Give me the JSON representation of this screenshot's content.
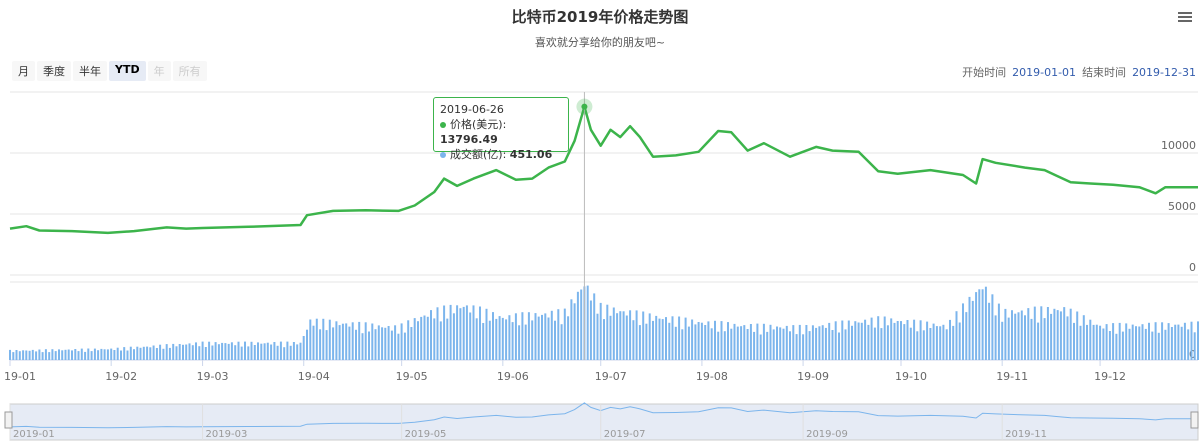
{
  "title": "比特币2019年价格走势图",
  "subtitle": "喜欢就分享给你的朋友吧~",
  "range_selector": {
    "buttons": [
      {
        "label": "月",
        "state": "normal"
      },
      {
        "label": "季度",
        "state": "normal"
      },
      {
        "label": "半年",
        "state": "normal"
      },
      {
        "label": "YTD",
        "state": "active"
      },
      {
        "label": "年",
        "state": "disabled"
      },
      {
        "label": "所有",
        "state": "disabled"
      }
    ],
    "from_label": "开始时间",
    "from_value": "2019-01-01",
    "to_label": "结束时间",
    "to_value": "2019-12-31"
  },
  "tooltip": {
    "date": "2019-06-26",
    "price_label": "价格(美元):",
    "price_value": "13796.49",
    "volume_label": "成交额(亿):",
    "volume_value": "451.06"
  },
  "colors": {
    "price": "#3cb44b",
    "volume": "#7cb5ec",
    "navigator": "#7cb5ec"
  },
  "chart_data": {
    "type": "line",
    "x_axis": {
      "ticks": [
        "19-01",
        "19-02",
        "19-03",
        "19-04",
        "19-05",
        "19-06",
        "19-07",
        "19-08",
        "19-09",
        "19-10",
        "19-11",
        "19-12"
      ]
    },
    "price_axis": {
      "ticks": [
        0,
        5000,
        10000
      ],
      "range": [
        0,
        15000
      ]
    },
    "volume_axis": {
      "ticks": [
        0
      ],
      "range": [
        0,
        500
      ]
    },
    "navigator_ticks": [
      "2019-01",
      "2019-03",
      "2019-05",
      "2019-07",
      "2019-09",
      "2019-11"
    ],
    "series": [
      {
        "name": "价格(美元)",
        "points": [
          [
            "2019-01-01",
            3800
          ],
          [
            "2019-01-06",
            4000
          ],
          [
            "2019-01-10",
            3650
          ],
          [
            "2019-01-20",
            3600
          ],
          [
            "2019-01-31",
            3450
          ],
          [
            "2019-02-08",
            3600
          ],
          [
            "2019-02-18",
            3900
          ],
          [
            "2019-02-24",
            3800
          ],
          [
            "2019-03-01",
            3850
          ],
          [
            "2019-03-15",
            3950
          ],
          [
            "2019-03-31",
            4100
          ],
          [
            "2019-04-02",
            4900
          ],
          [
            "2019-04-10",
            5250
          ],
          [
            "2019-04-20",
            5300
          ],
          [
            "2019-04-30",
            5250
          ],
          [
            "2019-05-05",
            5700
          ],
          [
            "2019-05-11",
            6800
          ],
          [
            "2019-05-14",
            7900
          ],
          [
            "2019-05-18",
            7300
          ],
          [
            "2019-05-23",
            7900
          ],
          [
            "2019-05-30",
            8600
          ],
          [
            "2019-06-05",
            7800
          ],
          [
            "2019-06-10",
            7900
          ],
          [
            "2019-06-15",
            8800
          ],
          [
            "2019-06-20",
            9300
          ],
          [
            "2019-06-23",
            11000
          ],
          [
            "2019-06-26",
            13796.49
          ],
          [
            "2019-06-28",
            11900
          ],
          [
            "2019-07-01",
            10600
          ],
          [
            "2019-07-04",
            11900
          ],
          [
            "2019-07-07",
            11300
          ],
          [
            "2019-07-10",
            12200
          ],
          [
            "2019-07-13",
            11300
          ],
          [
            "2019-07-17",
            9700
          ],
          [
            "2019-07-24",
            9800
          ],
          [
            "2019-07-31",
            10100
          ],
          [
            "2019-08-06",
            11800
          ],
          [
            "2019-08-10",
            11700
          ],
          [
            "2019-08-15",
            10200
          ],
          [
            "2019-08-20",
            10800
          ],
          [
            "2019-08-28",
            9700
          ],
          [
            "2019-09-05",
            10500
          ],
          [
            "2019-09-10",
            10200
          ],
          [
            "2019-09-18",
            10100
          ],
          [
            "2019-09-24",
            8500
          ],
          [
            "2019-09-30",
            8300
          ],
          [
            "2019-10-10",
            8600
          ],
          [
            "2019-10-20",
            8200
          ],
          [
            "2019-10-24",
            7500
          ],
          [
            "2019-10-26",
            9500
          ],
          [
            "2019-10-30",
            9200
          ],
          [
            "2019-11-08",
            8800
          ],
          [
            "2019-11-14",
            8600
          ],
          [
            "2019-11-18",
            8100
          ],
          [
            "2019-11-22",
            7600
          ],
          [
            "2019-11-28",
            7500
          ],
          [
            "2019-12-05",
            7400
          ],
          [
            "2019-12-13",
            7200
          ],
          [
            "2019-12-18",
            6700
          ],
          [
            "2019-12-21",
            7200
          ],
          [
            "2019-12-31",
            7200
          ]
        ]
      },
      {
        "name": "成交额(亿)",
        "points": [
          [
            "2019-01-01",
            55
          ],
          [
            "2019-02-01",
            65
          ],
          [
            "2019-03-01",
            100
          ],
          [
            "2019-03-31",
            100
          ],
          [
            "2019-04-03",
            230
          ],
          [
            "2019-04-30",
            190
          ],
          [
            "2019-05-10",
            280
          ],
          [
            "2019-05-20",
            320
          ],
          [
            "2019-06-01",
            250
          ],
          [
            "2019-06-20",
            280
          ],
          [
            "2019-06-26",
            451.06
          ],
          [
            "2019-07-01",
            310
          ],
          [
            "2019-07-15",
            260
          ],
          [
            "2019-08-01",
            220
          ],
          [
            "2019-08-15",
            200
          ],
          [
            "2019-09-01",
            190
          ],
          [
            "2019-09-25",
            240
          ],
          [
            "2019-10-15",
            200
          ],
          [
            "2019-10-26",
            440
          ],
          [
            "2019-11-01",
            280
          ],
          [
            "2019-11-20",
            300
          ],
          [
            "2019-12-01",
            200
          ],
          [
            "2019-12-31",
            210
          ]
        ]
      }
    ]
  }
}
